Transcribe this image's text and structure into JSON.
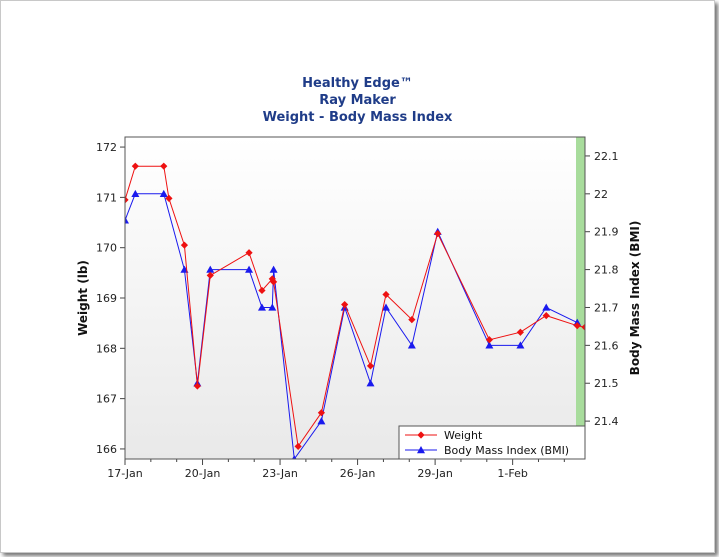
{
  "chart_data": {
    "type": "line",
    "title": "Healthy Edge™",
    "subtitle": [
      "Ray Maker",
      "Weight - Body Mass Index"
    ],
    "x_ticks": [
      "17-Jan",
      "20-Jan",
      "23-Jan",
      "26-Jan",
      "29-Jan",
      "1-Feb"
    ],
    "x_range": [
      17,
      34.8
    ],
    "axes": {
      "left": {
        "label": "Weight (lb)",
        "range": [
          165.8,
          172.2
        ],
        "ticks": [
          166,
          167,
          168,
          169,
          170,
          171,
          172
        ]
      },
      "right": {
        "label": "Body Mass Index (BMI)",
        "range": [
          21.3,
          22.15
        ],
        "ticks": [
          "21.4",
          "21.5",
          "21.6",
          "21.7",
          "21.8",
          "21.9",
          "22",
          "22.1"
        ]
      }
    },
    "grid": false,
    "legend_position": "bottom-right",
    "series": [
      {
        "name": "Weight",
        "axis": "left",
        "color": "#ee1111",
        "marker": "diamond",
        "x": [
          17.0,
          17.4,
          18.5,
          18.7,
          19.3,
          19.8,
          20.3,
          21.8,
          22.3,
          22.7,
          22.75,
          23.7,
          24.6,
          25.5,
          26.5,
          27.1,
          28.1,
          29.1,
          31.1,
          32.3,
          33.3,
          34.5,
          34.8
        ],
        "y": [
          170.95,
          171.62,
          171.62,
          170.98,
          170.05,
          167.25,
          169.45,
          169.9,
          169.15,
          169.38,
          169.32,
          166.05,
          166.72,
          168.87,
          167.65,
          169.07,
          168.57,
          170.28,
          168.17,
          168.32,
          168.65,
          168.45,
          168.42
        ]
      },
      {
        "name": "Body Mass Index (BMI)",
        "axis": "right",
        "color": "#1a1aee",
        "marker": "triangle",
        "x": [
          17.0,
          17.4,
          18.5,
          19.3,
          19.8,
          20.3,
          21.8,
          22.3,
          22.7,
          22.75,
          23.55,
          24.6,
          25.5,
          26.5,
          27.1,
          28.1,
          29.1,
          31.1,
          32.3,
          33.3,
          34.5
        ],
        "y": [
          21.93,
          22.0,
          22.0,
          21.8,
          21.5,
          21.8,
          21.8,
          21.7,
          21.7,
          21.8,
          21.3,
          21.4,
          21.7,
          21.5,
          21.7,
          21.6,
          21.9,
          21.6,
          21.6,
          21.7,
          21.66
        ]
      }
    ]
  }
}
